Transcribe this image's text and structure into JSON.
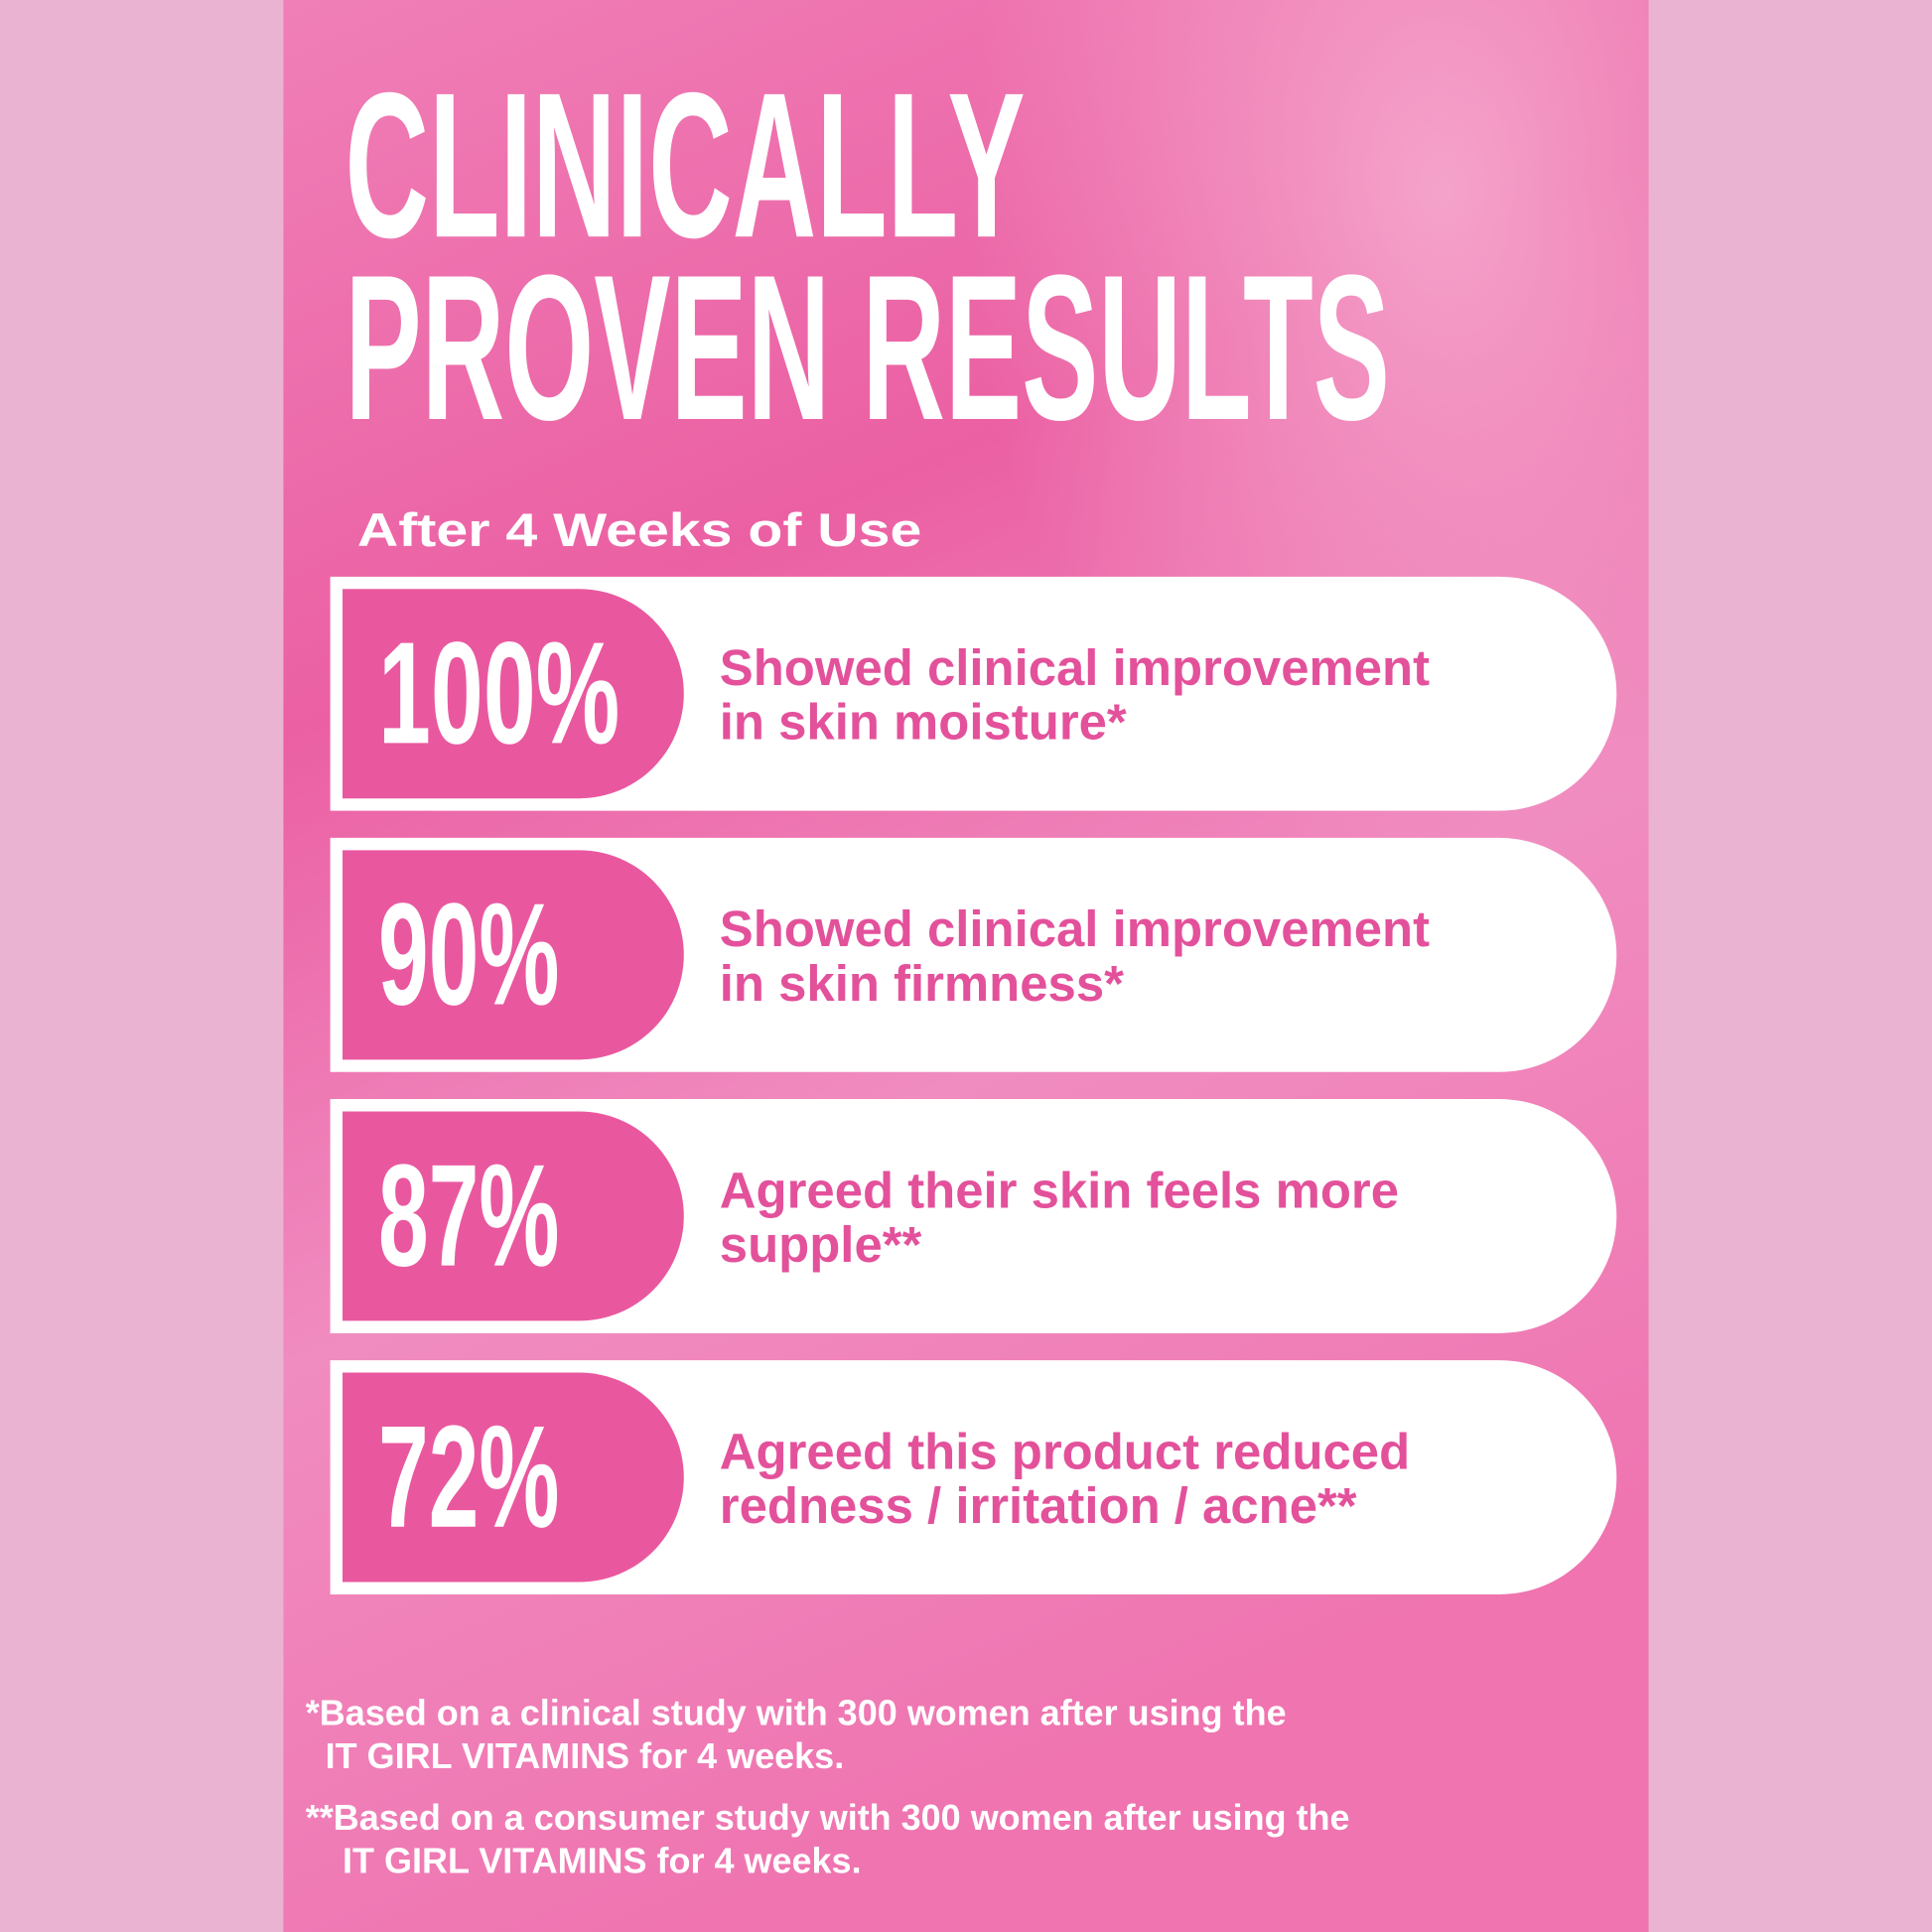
{
  "header": {
    "title": [
      "CLINICALLY",
      "PROVEN RESULTS"
    ],
    "subtitle": "After 4 Weeks of Use"
  },
  "stats": [
    {
      "value": "100%",
      "lines": [
        "Showed clinical improvement",
        "in skin moisture*"
      ]
    },
    {
      "value": "90%",
      "lines": [
        "Showed clinical improvement",
        "in skin firmness*"
      ]
    },
    {
      "value": "87%",
      "lines": [
        "Agreed their skin feels more",
        "supple**"
      ]
    },
    {
      "value": "72%",
      "lines": [
        "Agreed this product reduced",
        "redness / irritation / acne**"
      ]
    }
  ],
  "footnotes": [
    {
      "lines": [
        "*Based on a clinical study with 300 women after using the",
        "IT GIRL VITAMINS for 4 weeks."
      ]
    },
    {
      "lines": [
        "**Based on a consumer study with 300 women after using the",
        "IT GIRL VITAMINS for 4 weeks."
      ]
    }
  ]
}
